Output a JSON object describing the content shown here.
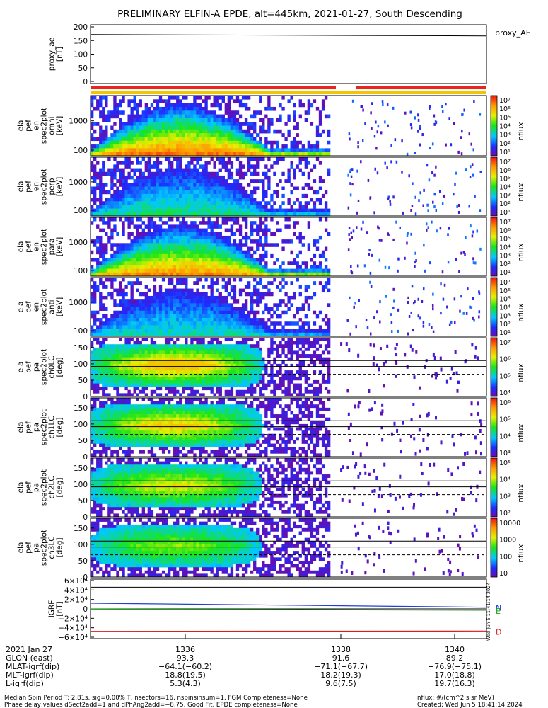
{
  "title": "PRELIMINARY ELFIN-A EPDE, alt=445km, 2021-01-27, South Descending",
  "colors": {
    "red_bar": "#e8261f",
    "yellow_bar": "#f4c400",
    "bx": "#1f3fd6",
    "by": "#1aa01a",
    "bz": "#d81e1e"
  },
  "chart_data": [
    {
      "type": "line",
      "panel": "proxy_ae",
      "ylabel": "proxy_ae\n[nT]",
      "legend": "proxy_AE",
      "ylim": [
        0,
        200
      ],
      "yticks": [
        "200",
        "150",
        "100",
        "50",
        "0"
      ],
      "series": [
        {
          "x": [
            0,
            1
          ],
          "values": [
            172,
            167
          ]
        }
      ]
    },
    {
      "type": "heatmap",
      "panel": "en-omni",
      "ylabel": [
        "ela",
        "pef",
        "en",
        "spec2plot",
        "omni",
        "[keV]"
      ],
      "yticks": [
        "1000",
        "100"
      ],
      "yscale": "log",
      "colorbar": {
        "label": "nflux",
        "ticks": [
          "10⁷",
          "10⁶",
          "10⁵",
          "10⁴",
          "10³",
          "10²",
          "10¹"
        ]
      }
    },
    {
      "type": "heatmap",
      "panel": "en-perp-low",
      "ylabel": [
        "ela",
        "pef",
        "en",
        "spec2plot",
        "perp",
        "[keV]"
      ],
      "yticks": [
        "1000",
        "100"
      ],
      "yscale": "log",
      "colorbar": {
        "label": "nflux",
        "ticks": [
          "10⁷",
          "10⁶",
          "10⁵",
          "10⁴",
          "10³",
          "10²",
          "10¹"
        ]
      }
    },
    {
      "type": "heatmap",
      "panel": "en-para",
      "ylabel": [
        "ela",
        "pef",
        "en",
        "spec2plot",
        "para",
        "[keV]"
      ],
      "yticks": [
        "1000",
        "100"
      ],
      "yscale": "log",
      "colorbar": {
        "label": "nflux",
        "ticks": [
          "10⁷",
          "10⁶",
          "10⁵",
          "10⁴",
          "10³",
          "10²",
          "10¹"
        ]
      }
    },
    {
      "type": "heatmap",
      "panel": "en-anti",
      "ylabel": [
        "ela",
        "pef",
        "en",
        "spec2plot",
        "anti",
        "[keV]"
      ],
      "yticks": [
        "1000",
        "100"
      ],
      "yscale": "log",
      "colorbar": {
        "label": "nflux",
        "ticks": [
          "10⁷",
          "10⁶",
          "10⁵",
          "10⁴",
          "10³",
          "10²",
          "10¹"
        ]
      }
    },
    {
      "type": "heatmap",
      "panel": "pa-ch0",
      "ylabel": [
        "ela",
        "pef",
        "pa",
        "spec2plot",
        "ch0LC",
        "[deg]"
      ],
      "yticks": [
        "150",
        "100",
        "50",
        "0"
      ],
      "ylim": [
        0,
        180
      ],
      "colorbar": {
        "label": "nflux",
        "ticks": [
          "10⁷",
          "10⁶",
          "10⁵",
          "10⁴"
        ]
      }
    },
    {
      "type": "heatmap",
      "panel": "pa-ch1",
      "ylabel": [
        "ela",
        "pef",
        "pa",
        "spec2plot",
        "ch1LC",
        "[deg]"
      ],
      "yticks": [
        "150",
        "100",
        "50",
        "0"
      ],
      "ylim": [
        0,
        180
      ],
      "colorbar": {
        "label": "nflux",
        "ticks": [
          "10⁶",
          "10⁵",
          "10⁴",
          "10³"
        ]
      }
    },
    {
      "type": "heatmap",
      "panel": "pa-ch2",
      "ylabel": [
        "ela",
        "pef",
        "pa",
        "spec2plot",
        "ch2LC",
        "[deg]"
      ],
      "yticks": [
        "150",
        "100",
        "50",
        "0"
      ],
      "ylim": [
        0,
        180
      ],
      "colorbar": {
        "label": "nflux",
        "ticks": [
          "10⁵",
          "10⁴",
          "10³",
          "10²"
        ]
      }
    },
    {
      "type": "heatmap",
      "panel": "pa-ch3",
      "ylabel": [
        "ela",
        "pef",
        "pa",
        "spec2plot",
        "ch3LC",
        "[deg]"
      ],
      "yticks": [
        "150",
        "100",
        "50",
        "0"
      ],
      "ylim": [
        0,
        180
      ],
      "colorbar": {
        "label": "nflux",
        "ticks": [
          "10000",
          "1000",
          "100",
          "10"
        ]
      }
    },
    {
      "type": "line",
      "panel": "igrf",
      "ylabel": "IGRF\n[nT]",
      "ylim": [
        -60000,
        60000
      ],
      "yticks": [
        "6×10⁴",
        "4×10⁴",
        "2×10⁴",
        "0",
        "−2×10⁴",
        "−4×10⁴",
        "−6×10⁴"
      ],
      "series": [
        {
          "name": "N",
          "color": "#1f3fd6",
          "x": [
            0,
            1
          ],
          "values": [
            12000,
            3500
          ]
        },
        {
          "name": "E",
          "color": "#1aa01a",
          "x": [
            0,
            1
          ],
          "values": [
            -400,
            -2800
          ]
        },
        {
          "name": "D",
          "color": "#d81e1e",
          "x": [
            0,
            1
          ],
          "values": [
            -47500,
            -47000
          ]
        }
      ]
    }
  ],
  "rotated_note": "Wed Jun  5 11:41:14 2024",
  "xaxis": {
    "header": "2021 Jan 27",
    "ticks": [
      "1336",
      "1338",
      "1340"
    ],
    "rows": [
      {
        "label": "GLON (east)",
        "vals": [
          "93.3",
          "91.6",
          "89.2"
        ]
      },
      {
        "label": "MLAT-igrf(dip)",
        "vals": [
          "−64.1(−60.2)",
          "−71.1(−67.7)",
          "−76.9(−75.1)"
        ]
      },
      {
        "label": "MLT-igrf(dip)",
        "vals": [
          "18.8(19.5)",
          "18.2(19.3)",
          "17.0(18.8)"
        ]
      },
      {
        "label": "L-igrf(dip)",
        "vals": [
          "5.3(4.3)",
          "9.6(7.5)",
          "19.7(16.3)"
        ]
      }
    ]
  },
  "footer": {
    "line1": "Median Spin Period T: 2.81s, sig=0.00% T, nsectors=16, nspinsinsum=1, FGM Completeness=None",
    "line2": "Phase delay values dSect2add=1 and dPhAng2add=−8.75, Good Fit, EPDE completeness=None",
    "units": "nflux: #/(cm^2 s sr MeV)",
    "created": "Created: Wed Jun  5 18:41:14 2024"
  }
}
